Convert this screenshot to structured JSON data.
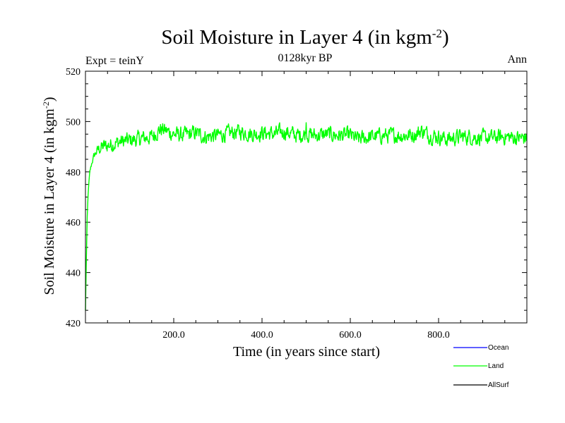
{
  "chart_data": {
    "type": "line",
    "title": "Soil Moisture in Layer 4 (in kgm",
    "title_sup": "-2",
    "title_close": ")",
    "subtitle": "0128kyr BP",
    "left_label": "Expt = teinY",
    "right_label": "Ann",
    "xlabel": "Time (in years since start)",
    "ylabel": "Soil Moisture in Layer 4 (in kgm",
    "ylabel_sup": "-2",
    "ylabel_close": ")",
    "xlim": [
      0,
      1000
    ],
    "ylim": [
      420,
      520
    ],
    "xticks": [
      200,
      400,
      600,
      800
    ],
    "xtick_labels": [
      "200.0",
      "400.0",
      "600.0",
      "800.0"
    ],
    "yticks": [
      420,
      440,
      460,
      480,
      500,
      520
    ],
    "ytick_labels": [
      "420",
      "440",
      "460",
      "480",
      "500",
      "520"
    ],
    "colors": {
      "ocean": "#0000ff",
      "land": "#00ff00",
      "allsurf": "#000000"
    },
    "legend_position": "bottom-right",
    "series": [
      {
        "name": "Ocean",
        "color": "#0000ff",
        "values": []
      },
      {
        "name": "Land",
        "color": "#00ff00",
        "x": [
          0,
          2,
          4,
          6,
          8,
          10,
          15,
          20,
          25,
          30,
          40,
          50,
          60,
          80,
          100,
          120,
          150,
          170,
          180,
          200,
          220,
          250,
          270,
          300,
          330,
          350,
          380,
          400,
          430,
          450,
          480,
          498,
          500,
          502,
          520,
          550,
          570,
          600,
          615,
          650,
          680,
          700,
          730,
          750,
          760,
          780,
          800,
          820,
          850,
          870,
          900,
          920,
          950,
          980,
          1000
        ],
        "values": [
          425,
          445,
          462,
          471,
          476,
          480,
          484,
          486.5,
          488,
          489,
          490,
          490.5,
          491,
          492,
          492.5,
          493,
          494,
          497,
          496.5,
          495,
          494.5,
          495.5,
          494,
          494.5,
          495.5,
          496,
          495,
          495.5,
          495,
          496,
          494.5,
          495,
          500,
          495,
          494.5,
          495,
          494.5,
          494.5,
          493,
          494,
          494.5,
          494.5,
          494.5,
          495,
          496.5,
          494.5,
          494,
          493,
          494,
          494,
          493.5,
          493.5,
          494,
          493.5,
          493.5
        ],
        "noise_amplitude": 2.6
      },
      {
        "name": "AllSurf",
        "color": "#000000",
        "values": []
      }
    ]
  }
}
